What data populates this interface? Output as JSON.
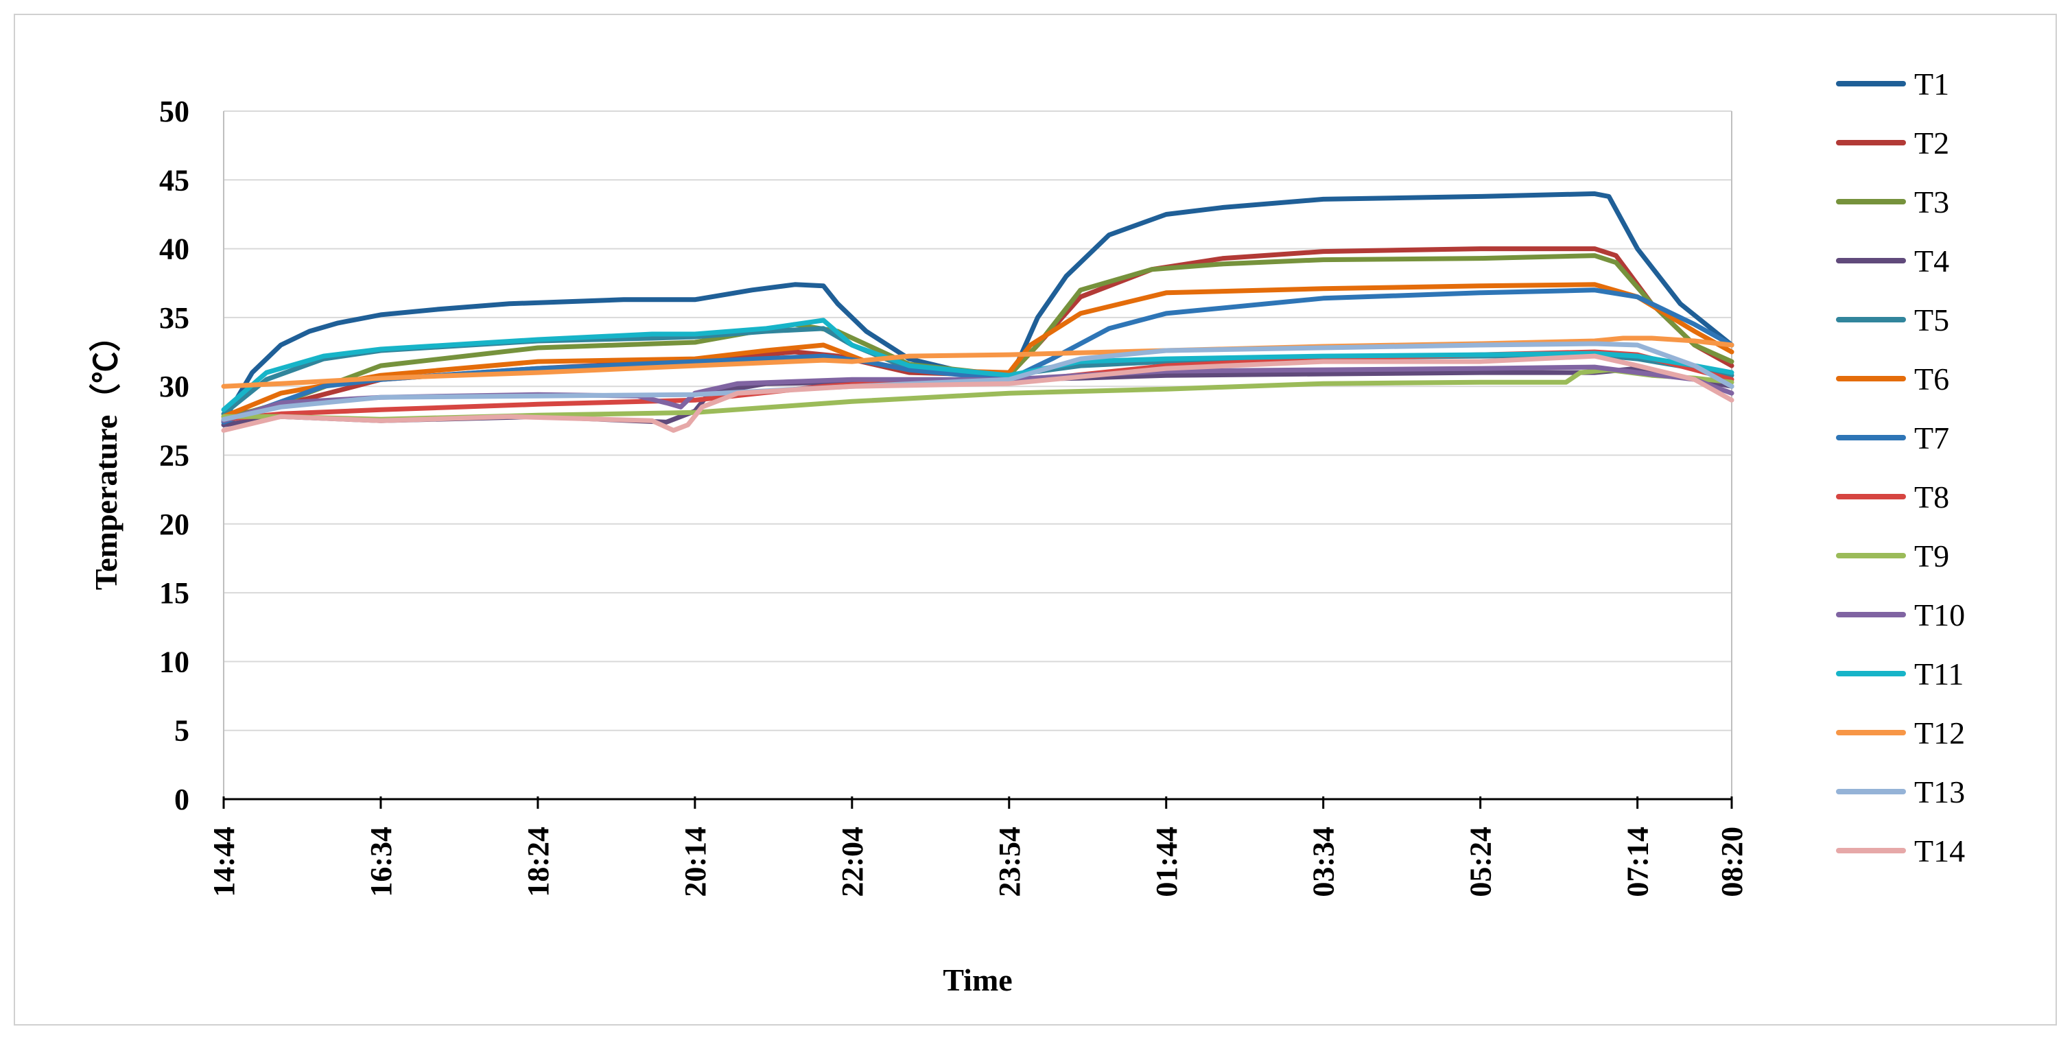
{
  "chart_data": {
    "type": "line",
    "xlabel": "Time",
    "ylabel": "Temperature（℃）",
    "ylim": [
      0,
      50
    ],
    "yticks": [
      "0",
      "5",
      "10",
      "15",
      "20",
      "25",
      "30",
      "35",
      "40",
      "45",
      "50"
    ],
    "x_tick_labels": [
      "14:44",
      "16:34",
      "18:24",
      "20:14",
      "22:04",
      "23:54",
      "01:44",
      "03:34",
      "05:24",
      "07:14",
      "08:20"
    ],
    "x_tick_positions": [
      0,
      110,
      220,
      330,
      440,
      550,
      660,
      770,
      880,
      990,
      1056
    ],
    "x_unit": "minutes after 14:44",
    "grid": "horizontal",
    "legend_position": "right",
    "series": [
      {
        "name": "T1",
        "color": "#1f5f97",
        "x": [
          0,
          20,
          40,
          60,
          80,
          110,
          150,
          200,
          280,
          330,
          370,
          400,
          420,
          430,
          450,
          480,
          520,
          550,
          555,
          570,
          590,
          620,
          660,
          700,
          770,
          880,
          960,
          970,
          990,
          1020,
          1056
        ],
        "y": [
          27.5,
          31,
          33,
          34,
          34.6,
          35.2,
          35.6,
          36,
          36.3,
          36.3,
          37,
          37.4,
          37.3,
          36,
          34,
          32,
          31,
          30.5,
          31.5,
          35,
          38,
          41,
          42.5,
          43,
          43.6,
          43.8,
          44,
          43.8,
          40,
          36,
          33
        ]
      },
      {
        "name": "T2",
        "color": "#b23a36",
        "x": [
          0,
          40,
          110,
          220,
          330,
          400,
          430,
          480,
          550,
          570,
          600,
          650,
          700,
          770,
          880,
          960,
          975,
          1000,
          1030,
          1056
        ],
        "y": [
          27.8,
          28.6,
          30.5,
          31.3,
          31.9,
          32.5,
          32.2,
          31,
          30.8,
          33,
          36.5,
          38.5,
          39.3,
          39.8,
          40,
          40,
          39.5,
          36,
          33,
          31.5
        ]
      },
      {
        "name": "T3",
        "color": "#76923c",
        "x": [
          0,
          40,
          110,
          220,
          330,
          400,
          430,
          480,
          550,
          570,
          600,
          650,
          700,
          770,
          880,
          960,
          975,
          1000,
          1030,
          1056
        ],
        "y": [
          27.6,
          28.8,
          31.5,
          32.8,
          33.2,
          34.5,
          34,
          31.6,
          30.8,
          33,
          37,
          38.5,
          38.9,
          39.2,
          39.3,
          39.5,
          39,
          36,
          33,
          31.8
        ]
      },
      {
        "name": "T4",
        "color": "#604a7b",
        "x": [
          0,
          40,
          110,
          220,
          310,
          330,
          340,
          380,
          440,
          550,
          600,
          660,
          770,
          880,
          960,
          990,
          1056
        ],
        "y": [
          27.2,
          27.8,
          27.5,
          27.8,
          27.4,
          28.2,
          29.5,
          30.2,
          30.3,
          30.5,
          30.6,
          30.8,
          30.9,
          31,
          31,
          31.3,
          30
        ]
      },
      {
        "name": "T5",
        "color": "#31859c",
        "x": [
          0,
          30,
          70,
          110,
          220,
          300,
          330,
          380,
          420,
          440,
          480,
          550,
          600,
          660,
          770,
          880,
          960,
          990,
          1030,
          1056
        ],
        "y": [
          28,
          30.5,
          32,
          32.6,
          33.3,
          33.5,
          33.6,
          34,
          34.2,
          33,
          31.3,
          30.8,
          31.5,
          31.8,
          32.1,
          32.2,
          32.3,
          32,
          31.3,
          30.8
        ]
      },
      {
        "name": "T6",
        "color": "#e46c0a",
        "x": [
          0,
          40,
          110,
          220,
          330,
          380,
          420,
          450,
          480,
          550,
          565,
          600,
          660,
          770,
          880,
          960,
          990,
          1030,
          1056
        ],
        "y": [
          27.8,
          29.5,
          30.8,
          31.8,
          32,
          32.6,
          33,
          31.8,
          31.2,
          31,
          33,
          35.3,
          36.8,
          37.1,
          37.3,
          37.4,
          36.5,
          34,
          32.5
        ]
      },
      {
        "name": "T7",
        "color": "#2e75b6",
        "x": [
          0,
          30,
          70,
          110,
          220,
          330,
          420,
          450,
          480,
          550,
          580,
          620,
          660,
          770,
          880,
          960,
          990,
          1030,
          1056
        ],
        "y": [
          27.4,
          28.5,
          30,
          30.5,
          31.3,
          31.8,
          32.2,
          31.8,
          31.2,
          30.5,
          32,
          34.2,
          35.3,
          36.4,
          36.8,
          37,
          36.5,
          34.5,
          33
        ]
      },
      {
        "name": "T8",
        "color": "#d64541",
        "x": [
          0,
          40,
          110,
          220,
          330,
          420,
          450,
          550,
          660,
          770,
          880,
          960,
          990,
          1056
        ],
        "y": [
          27.6,
          28,
          28.3,
          28.7,
          29,
          30,
          30.2,
          30.3,
          31.5,
          32,
          32.3,
          32.5,
          32.3,
          30.5
        ]
      },
      {
        "name": "T9",
        "color": "#9bbb59",
        "x": [
          0,
          40,
          110,
          220,
          330,
          440,
          550,
          660,
          770,
          880,
          940,
          950,
          970,
          1000,
          1030,
          1056
        ],
        "y": [
          27.8,
          27.8,
          27.6,
          27.9,
          28.1,
          28.9,
          29.5,
          29.8,
          30.2,
          30.3,
          30.3,
          31,
          31.2,
          30.8,
          30.6,
          30.3
        ]
      },
      {
        "name": "T10",
        "color": "#8064a2",
        "x": [
          0,
          40,
          110,
          220,
          290,
          310,
          320,
          330,
          360,
          440,
          550,
          600,
          660,
          770,
          880,
          960,
          990,
          1030,
          1056
        ],
        "y": [
          27.5,
          28.8,
          29.2,
          29.4,
          29.3,
          28.8,
          28.5,
          29.5,
          30.2,
          30.5,
          30.5,
          30.8,
          31.1,
          31.2,
          31.3,
          31.4,
          31,
          30.5,
          29.5
        ]
      },
      {
        "name": "T11",
        "color": "#17b4c8",
        "x": [
          0,
          30,
          70,
          110,
          220,
          300,
          330,
          380,
          420,
          440,
          480,
          550,
          600,
          660,
          770,
          880,
          960,
          990,
          1030,
          1056
        ],
        "y": [
          28.3,
          31,
          32.2,
          32.7,
          33.4,
          33.8,
          33.8,
          34.2,
          34.8,
          33,
          31.5,
          30.8,
          31.8,
          32,
          32.2,
          32.3,
          32.4,
          32.2,
          31.5,
          31
        ]
      },
      {
        "name": "T12",
        "color": "#f79646",
        "x": [
          0,
          40,
          110,
          220,
          330,
          420,
          440,
          480,
          550,
          660,
          770,
          880,
          960,
          980,
          1000,
          1030,
          1056
        ],
        "y": [
          30,
          30.2,
          30.6,
          31,
          31.5,
          31.9,
          31.8,
          32.2,
          32.3,
          32.6,
          32.9,
          33.1,
          33.3,
          33.5,
          33.5,
          33.3,
          33
        ]
      },
      {
        "name": "T13",
        "color": "#95b3d7",
        "x": [
          0,
          40,
          110,
          220,
          330,
          440,
          550,
          600,
          660,
          770,
          880,
          960,
          990,
          1030,
          1056
        ],
        "y": [
          27.6,
          28.5,
          29.2,
          29.3,
          29.4,
          30,
          30.5,
          32,
          32.6,
          32.8,
          33,
          33.1,
          33,
          31.5,
          30
        ]
      },
      {
        "name": "T14",
        "color": "#e6a8a8",
        "x": [
          0,
          40,
          110,
          200,
          300,
          315,
          325,
          335,
          360,
          440,
          550,
          660,
          770,
          880,
          960,
          990,
          1030,
          1056
        ],
        "y": [
          26.8,
          27.8,
          27.5,
          27.8,
          27.5,
          26.8,
          27.2,
          28.5,
          29.5,
          30,
          30.2,
          31.3,
          31.8,
          31.8,
          32.2,
          31.5,
          30.5,
          29
        ]
      }
    ]
  }
}
